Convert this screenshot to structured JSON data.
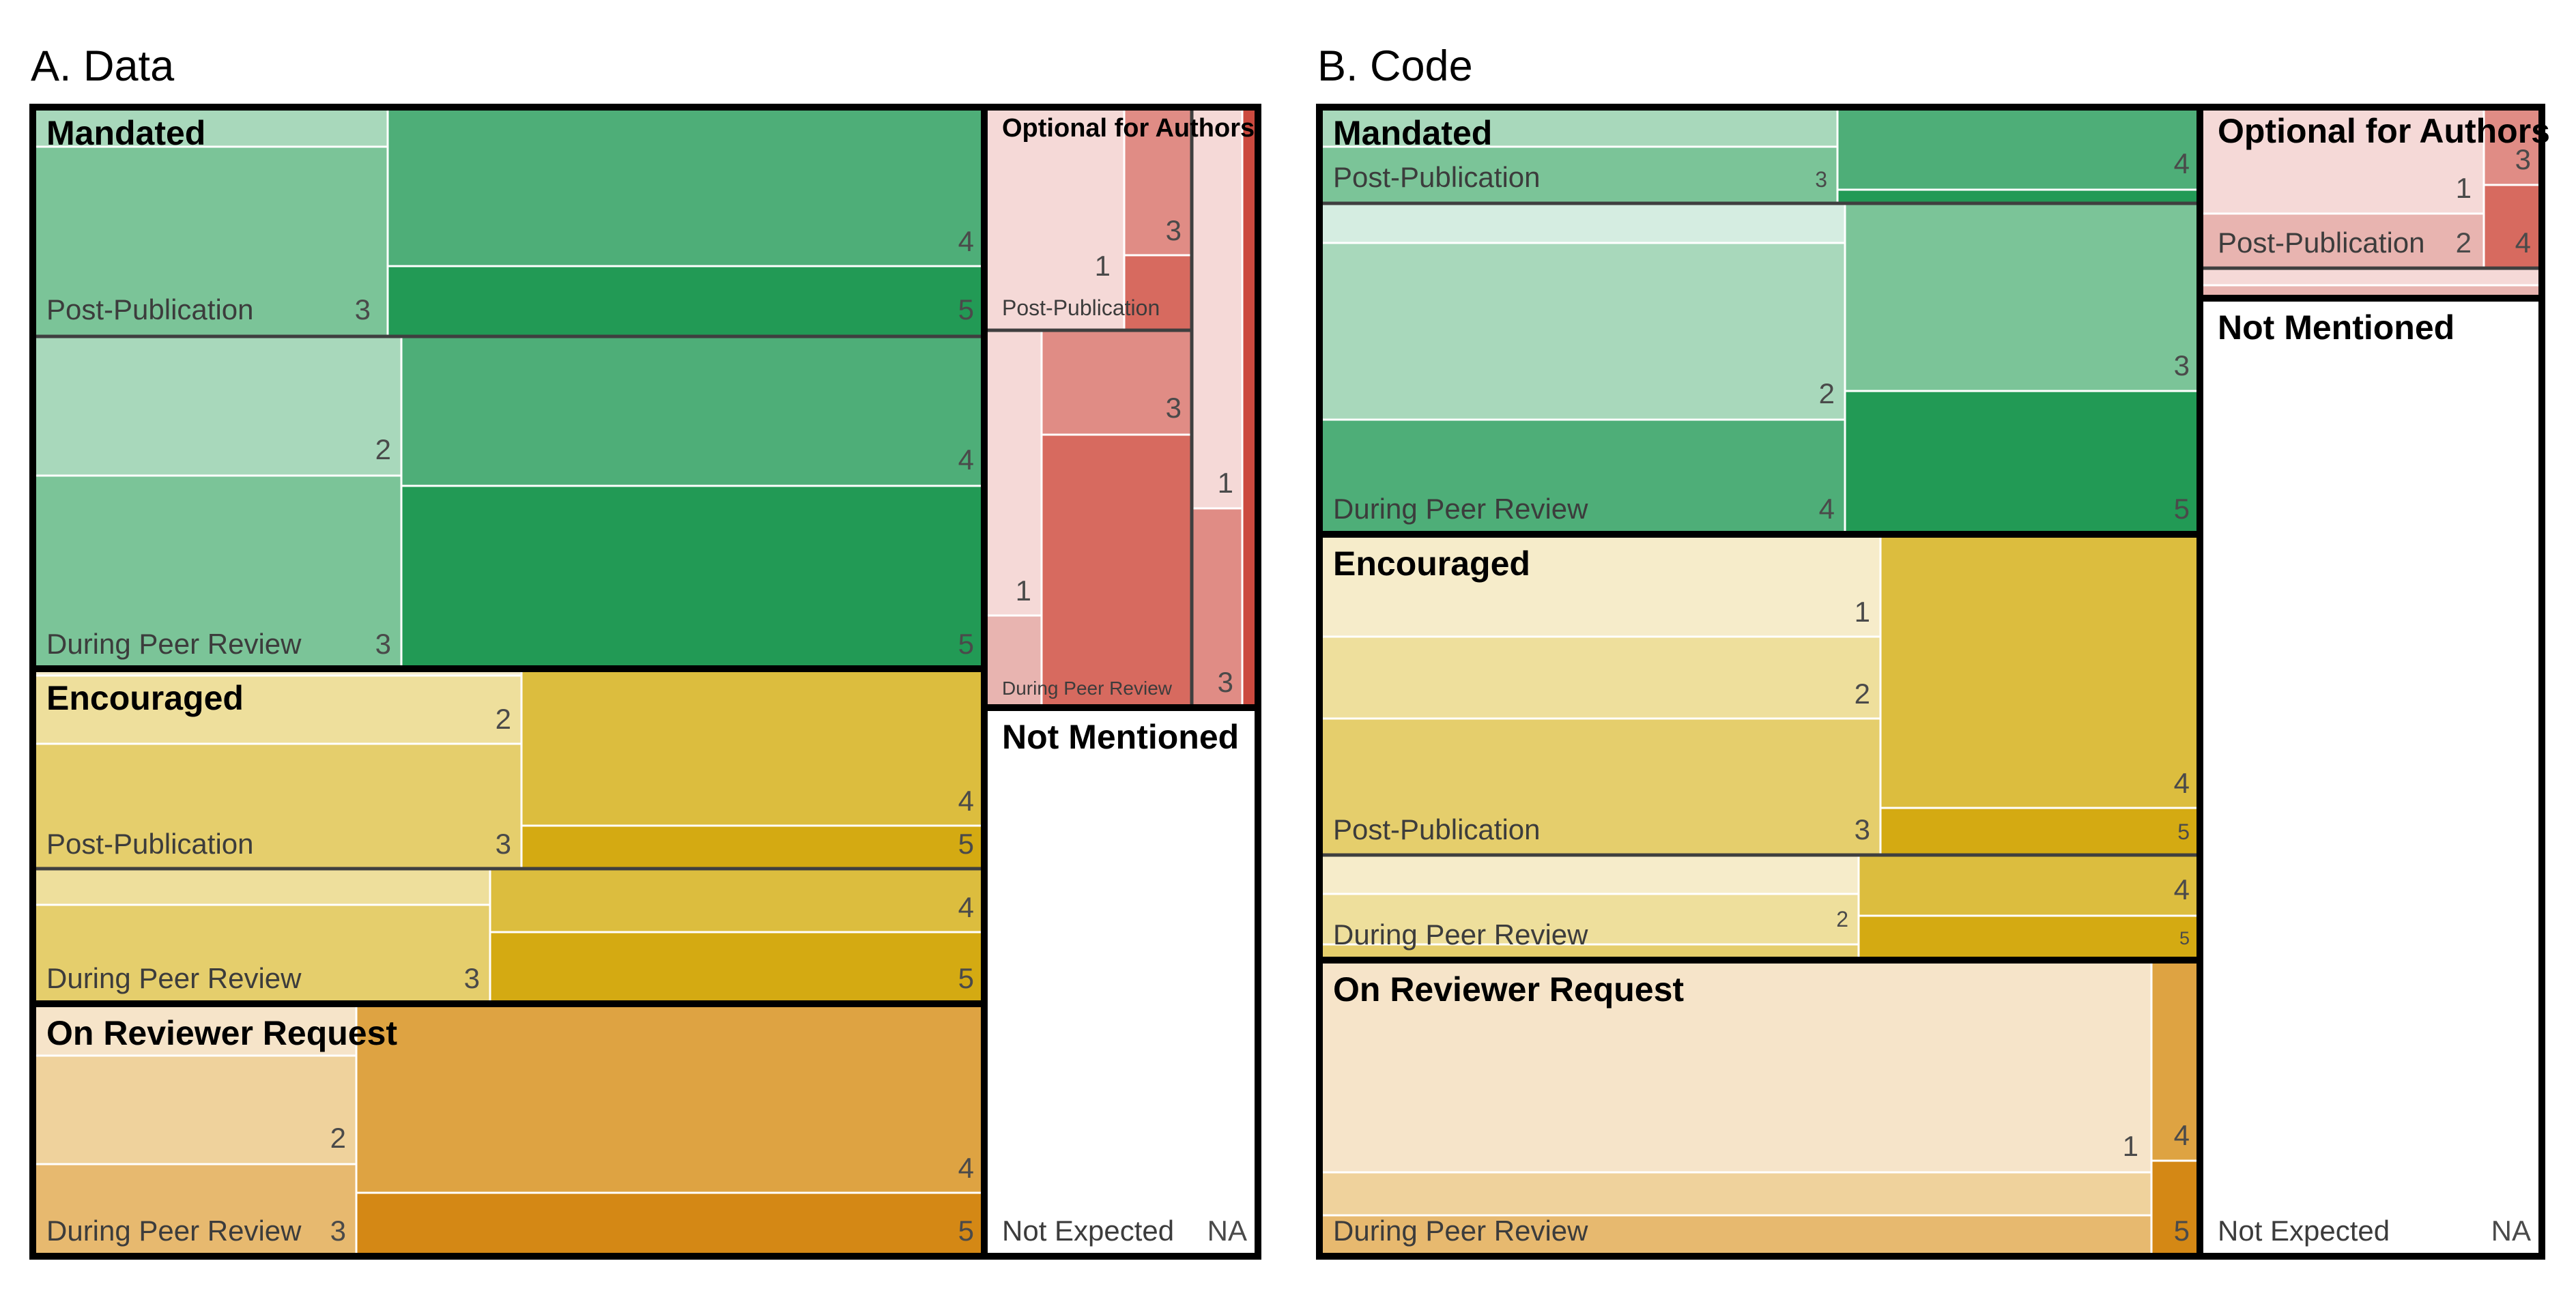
{
  "chart_data": [
    {
      "type": "treemap",
      "title": "A. Data",
      "rating_colors": {
        "Mandated": {
          "1": "#d5ede1",
          "2": "#a8d8bb",
          "3": "#7bc498",
          "4": "#4eae78",
          "5": "#229a55"
        },
        "Encouraged": {
          "1": "#f6ecca",
          "2": "#eedf9c",
          "3": "#e5ce6c",
          "4": "#dcbd3e",
          "5": "#d4aa12"
        },
        "On Reviewer Request": {
          "1": "#f6e4c9",
          "2": "#efd29c",
          "3": "#e7b96f",
          "4": "#dea342",
          "5": "#d48815"
        },
        "Optional for Authors": {
          "1": "#f5d9d7",
          "2": "#e8b4b0",
          "3": "#e08c85",
          "4": "#d76a5f",
          "5": "#cb4a3f"
        },
        "Not Mentioned": {
          "NA": "#ffffff"
        }
      },
      "groups": [
        {
          "name": "Mandated",
          "subgroups": [
            {
              "name": "Post-Publication",
              "cells": [
                {
                  "rating": "2",
                  "value": 8,
                  "show_label": false
                },
                {
                  "rating": "3",
                  "value": 40
                },
                {
                  "rating": "4",
                  "value": 87
                },
                {
                  "rating": "5",
                  "value": 29
                }
              ]
            },
            {
              "name": "During Peer Review",
              "cells": [
                {
                  "rating": "2",
                  "value": 56
                },
                {
                  "rating": "3",
                  "value": 82
                },
                {
                  "rating": "4",
                  "value": 61
                },
                {
                  "rating": "5",
                  "value": 117
                }
              ]
            }
          ]
        },
        {
          "name": "Encouraged",
          "subgroups": [
            {
              "name": "Post-Publication",
              "cells": [
                {
                  "rating": "1",
                  "value": 2,
                  "show_label": false
                },
                {
                  "rating": "2",
                  "value": 34
                },
                {
                  "rating": "3",
                  "value": 64
                },
                {
                  "rating": "4",
                  "value": 74
                },
                {
                  "rating": "5",
                  "value": 21
                }
              ]
            },
            {
              "name": "During Peer Review",
              "cells": [
                {
                  "rating": "2",
                  "value": 12,
                  "show_label": false
                },
                {
                  "rating": "3",
                  "value": 37
                },
                {
                  "rating": "4",
                  "value": 28
                },
                {
                  "rating": "5",
                  "value": 33
                }
              ]
            }
          ]
        },
        {
          "name": "On Reviewer Request",
          "subgroups": [
            {
              "name": "During Peer Review",
              "cells": [
                {
                  "rating": "1",
                  "value": 3,
                  "show_label": false
                },
                {
                  "rating": "2",
                  "value": 39
                },
                {
                  "rating": "3",
                  "value": 33
                },
                {
                  "rating": "4",
                  "value": 85
                },
                {
                  "rating": "5",
                  "value": 29
                }
              ]
            }
          ]
        },
        {
          "name": "Optional for Authors",
          "subgroups": [
            {
              "name": "Post-Publication",
              "cells": [
                {
                  "rating": "1",
                  "value": 22
                },
                {
                  "rating": "3",
                  "value": 6
                },
                {
                  "rating": "4",
                  "value": 7,
                  "show_label": false
                }
              ]
            },
            {
              "name": "During Peer Review",
              "cells": [
                {
                  "rating": "1",
                  "value": 14
                },
                {
                  "rating": "2",
                  "value": 3,
                  "show_label": false
                },
                {
                  "rating": "3",
                  "value": 6
                },
                {
                  "rating": "4",
                  "value": 19
                }
              ]
            },
            {
              "name": "",
              "cells": [
                {
                  "rating": "1",
                  "value": 8
                },
                {
                  "rating": "3",
                  "value": 6
                },
                {
                  "rating": "5",
                  "value": 2,
                  "show_label": false
                }
              ]
            }
          ]
        },
        {
          "name": "Not Mentioned",
          "subgroups": [
            {
              "name": "Not Expected",
              "cells": [
                {
                  "rating": "NA",
                  "value": 200
                }
              ]
            }
          ]
        }
      ]
    },
    {
      "type": "treemap",
      "title": "B. Code",
      "groups": [
        {
          "name": "Mandated",
          "subgroups": [
            {
              "name": "Post-Publication",
              "cells": [
                {
                  "rating": "2",
                  "value": 3,
                  "show_label": false
                },
                {
                  "rating": "3",
                  "value": 13
                },
                {
                  "rating": "4",
                  "value": 21
                },
                {
                  "rating": "5",
                  "value": 3,
                  "show_label": false
                }
              ]
            },
            {
              "name": "During Peer Review",
              "cells": [
                {
                  "rating": "1",
                  "value": 7,
                  "show_label": false
                },
                {
                  "rating": "2",
                  "value": 35
                },
                {
                  "rating": "3",
                  "value": 24
                },
                {
                  "rating": "4",
                  "value": 37
                },
                {
                  "rating": "5",
                  "value": 29
                }
              ]
            }
          ]
        },
        {
          "name": "Encouraged",
          "subgroups": [
            {
              "name": "Post-Publication",
              "cells": [
                {
                  "rating": "1",
                  "value": 28
                },
                {
                  "rating": "2",
                  "value": 22
                },
                {
                  "rating": "3",
                  "value": 37
                },
                {
                  "rating": "4",
                  "value": 52
                },
                {
                  "rating": "5",
                  "value": 11
                }
              ]
            },
            {
              "name": "During Peer Review",
              "cells": [
                {
                  "rating": "1",
                  "value": 12,
                  "show_label": false
                },
                {
                  "rating": "2",
                  "value": 14
                },
                {
                  "rating": "3",
                  "value": 5,
                  "show_label": false
                },
                {
                  "rating": "4",
                  "value": 15
                },
                {
                  "rating": "5",
                  "value": 9
                }
              ]
            }
          ]
        },
        {
          "name": "On Reviewer Request",
          "subgroups": [
            {
              "name": "During Peer Review",
              "cells": [
                {
                  "rating": "1",
                  "value": 173
                },
                {
                  "rating": "2",
                  "value": 39,
                  "show_label": false
                },
                {
                  "rating": "3",
                  "value": 36,
                  "show_label": false
                },
                {
                  "rating": "4",
                  "value": 17
                },
                {
                  "rating": "5",
                  "value": 8
                }
              ]
            }
          ]
        },
        {
          "name": "Optional for Authors",
          "subgroups": [
            {
              "name": "Post-Publication",
              "cells": [
                {
                  "rating": "1",
                  "value": 13
                },
                {
                  "rating": "2",
                  "value": 7
                },
                {
                  "rating": "3",
                  "value": 2
                },
                {
                  "rating": "4",
                  "value": 2
                }
              ]
            },
            {
              "name": "",
              "cells": [
                {
                  "rating": "1",
                  "value": 3,
                  "show_label": false
                },
                {
                  "rating": "2",
                  "value": 2,
                  "show_label": false
                }
              ]
            }
          ]
        },
        {
          "name": "Not Mentioned",
          "subgroups": [
            {
              "name": "Not Expected",
              "cells": [
                {
                  "rating": "NA",
                  "value": 380
                }
              ]
            }
          ]
        }
      ]
    }
  ]
}
